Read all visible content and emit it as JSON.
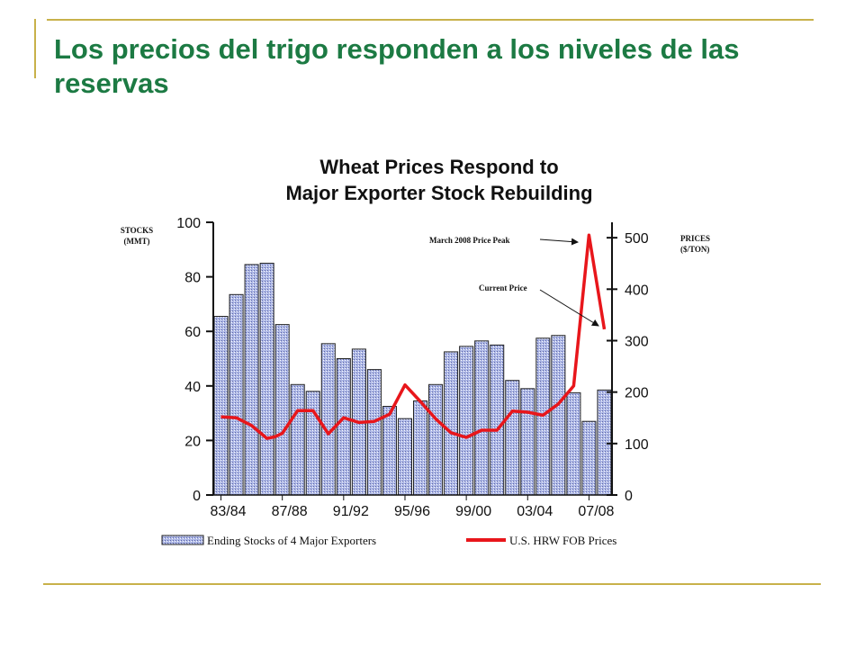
{
  "slide": {
    "title": "Los precios del trigo responden a los niveles de las reservas"
  },
  "colors": {
    "title": "#1c7a43",
    "rule": "#c8b14a",
    "bar_fill": "#aeb8e6",
    "price_line": "#e8161b"
  },
  "chart_data": {
    "type": "bar",
    "title": "Wheat Prices Respond to",
    "subtitle": "Major Exporter Stock Rebuilding",
    "left_axis_label_1": "STOCKS",
    "left_axis_label_2": "(MMT)",
    "right_axis_label_1": "PRICES",
    "right_axis_label_2": "($/TON)",
    "categories": [
      "83/84",
      "84/85",
      "85/86",
      "86/87",
      "87/88",
      "88/89",
      "89/90",
      "90/91",
      "91/92",
      "92/93",
      "93/94",
      "94/95",
      "95/96",
      "96/97",
      "97/98",
      "98/99",
      "99/00",
      "00/01",
      "01/02",
      "02/03",
      "03/04",
      "04/05",
      "05/06",
      "06/07",
      "07/08",
      "08/09"
    ],
    "x_tick_labels": [
      "83/84",
      "87/88",
      "91/92",
      "95/96",
      "99/00",
      "03/04",
      "07/08"
    ],
    "ylim_left": [
      0,
      100
    ],
    "yticks_left": [
      "0",
      "20",
      "40",
      "60",
      "80",
      "100"
    ],
    "ylim_right": [
      0,
      530
    ],
    "yticks_right": [
      "0",
      "100",
      "200",
      "300",
      "400",
      "500"
    ],
    "series": [
      {
        "name": "Ending Stocks of 4 Major Exporters",
        "axis": "left",
        "values": [
          65.5,
          73.5,
          84.5,
          85,
          62.5,
          40.5,
          38,
          55.5,
          50,
          53.5,
          46,
          32.5,
          28,
          34.5,
          40.5,
          52.5,
          54.5,
          56.5,
          55,
          42,
          39,
          57.5,
          58.5,
          37.5,
          27,
          38.5
        ]
      },
      {
        "name": "U.S. HRW FOB Prices",
        "axis": "right",
        "points": [
          {
            "x": "83/84",
            "y": 152
          },
          {
            "x": "84/85",
            "y": 150
          },
          {
            "x": "85/86",
            "y": 135
          },
          {
            "x": "86/87",
            "y": 110
          },
          {
            "x": "86/87-87/88",
            "y": 113
          },
          {
            "x": "87/88",
            "y": 120
          },
          {
            "x": "88/89",
            "y": 164
          },
          {
            "x": "89/90",
            "y": 164
          },
          {
            "x": "90/91",
            "y": 119
          },
          {
            "x": "91/92",
            "y": 150
          },
          {
            "x": "92/93",
            "y": 141
          },
          {
            "x": "93/94",
            "y": 143
          },
          {
            "x": "94/95",
            "y": 157
          },
          {
            "x": "95/96",
            "y": 214
          },
          {
            "x": "96/97",
            "y": 182
          },
          {
            "x": "97/98",
            "y": 148
          },
          {
            "x": "98/99",
            "y": 121
          },
          {
            "x": "99/00",
            "y": 112
          },
          {
            "x": "00/01",
            "y": 126
          },
          {
            "x": "01/02",
            "y": 126
          },
          {
            "x": "02/03",
            "y": 163
          },
          {
            "x": "03/04",
            "y": 161
          },
          {
            "x": "04/05",
            "y": 155
          },
          {
            "x": "05/06",
            "y": 177
          },
          {
            "x": "06/07",
            "y": 212
          },
          {
            "x": "07/08",
            "y": 505
          },
          {
            "x": "08/09",
            "y": 322
          }
        ]
      }
    ],
    "annotations": [
      {
        "text": "March 2008 Price Peak",
        "points_to": "07/08"
      },
      {
        "text": "Current Price",
        "points_to": "08/09"
      }
    ],
    "legend_position": "bottom",
    "grid": false
  }
}
